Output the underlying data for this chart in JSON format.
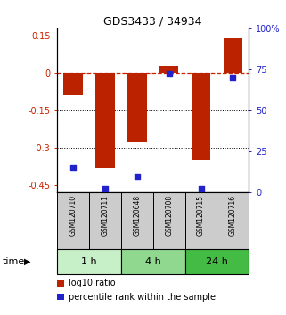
{
  "title": "GDS3433 / 34934",
  "samples": [
    "GSM120710",
    "GSM120711",
    "GSM120648",
    "GSM120708",
    "GSM120715",
    "GSM120716"
  ],
  "log10_ratio": [
    -0.09,
    -0.385,
    -0.28,
    0.03,
    -0.35,
    0.14
  ],
  "percentile_rank": [
    15,
    2,
    10,
    72,
    2,
    70
  ],
  "groups": [
    {
      "label": "1 h",
      "indices": [
        0,
        1
      ],
      "color": "#c8f0c8"
    },
    {
      "label": "4 h",
      "indices": [
        2,
        3
      ],
      "color": "#90d890"
    },
    {
      "label": "24 h",
      "indices": [
        4,
        5
      ],
      "color": "#44bb44"
    }
  ],
  "ylim_left": [
    -0.48,
    0.18
  ],
  "ylim_right": [
    0,
    100
  ],
  "yticks_left": [
    0.15,
    0,
    -0.15,
    -0.3,
    -0.45
  ],
  "yticks_right": [
    100,
    75,
    50,
    25,
    0
  ],
  "hlines": [
    0,
    -0.15,
    -0.3
  ],
  "bar_color": "#bb2200",
  "dot_color": "#2222cc",
  "sample_box_color": "#cccccc",
  "legend_bar_label": "log10 ratio",
  "legend_dot_label": "percentile rank within the sample",
  "xlabel": "time",
  "bar_width": 0.6
}
